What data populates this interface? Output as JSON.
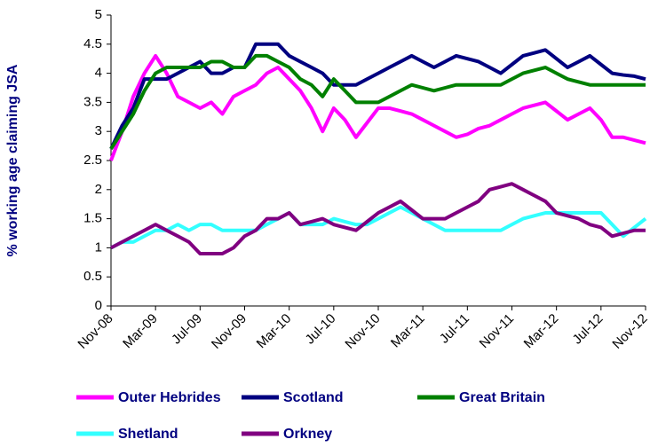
{
  "chart_data": {
    "type": "line",
    "y_label": "% working age claiming JSA",
    "categories": [
      "Nov-08",
      null,
      null,
      null,
      "Mar-09",
      null,
      null,
      null,
      "Jul-09",
      null,
      null,
      null,
      "Nov-09",
      null,
      null,
      null,
      "Mar-10",
      null,
      null,
      null,
      "Jul-10",
      null,
      null,
      null,
      "Nov-10",
      null,
      null,
      null,
      "Mar-11",
      null,
      null,
      null,
      "Jul-11",
      null,
      null,
      null,
      "Nov-11",
      null,
      null,
      null,
      "Mar-12",
      null,
      null,
      null,
      "Jul-12",
      null,
      null,
      null,
      "Nov-12"
    ],
    "series": [
      {
        "name": "Outer Hebrides",
        "color": "#ff00ff",
        "values": [
          2.5,
          3.0,
          3.6,
          4.0,
          4.3,
          4.0,
          3.6,
          3.5,
          3.4,
          3.5,
          3.3,
          3.6,
          3.7,
          3.8,
          4.0,
          4.1,
          3.9,
          3.7,
          3.4,
          3.0,
          3.4,
          3.2,
          2.9,
          3.15,
          3.4,
          3.4,
          3.35,
          3.3,
          3.2,
          3.1,
          3.0,
          2.9,
          2.95,
          3.05,
          3.1,
          3.2,
          3.3,
          3.4,
          3.45,
          3.5,
          3.35,
          3.2,
          3.3,
          3.4,
          3.2,
          2.9,
          2.9,
          2.85,
          2.8
        ]
      },
      {
        "name": "Scotland",
        "color": "#000080",
        "values": [
          2.7,
          3.1,
          3.4,
          3.9,
          3.9,
          3.9,
          4.0,
          4.1,
          4.2,
          4.0,
          4.0,
          4.1,
          4.1,
          4.5,
          4.5,
          4.5,
          4.3,
          4.2,
          4.1,
          4.0,
          3.8,
          3.8,
          3.8,
          3.9,
          4.0,
          4.1,
          4.2,
          4.3,
          4.2,
          4.1,
          4.2,
          4.3,
          4.25,
          4.2,
          4.1,
          4.0,
          4.15,
          4.3,
          4.35,
          4.4,
          4.25,
          4.1,
          4.2,
          4.3,
          4.15,
          4.0,
          3.97,
          3.95,
          3.9
        ]
      },
      {
        "name": "Great Britain",
        "color": "#008000",
        "values": [
          2.7,
          3.0,
          3.3,
          3.7,
          4.0,
          4.1,
          4.1,
          4.1,
          4.1,
          4.2,
          4.2,
          4.1,
          4.1,
          4.3,
          4.3,
          4.2,
          4.1,
          3.9,
          3.8,
          3.6,
          3.9,
          3.7,
          3.5,
          3.5,
          3.5,
          3.6,
          3.7,
          3.8,
          3.75,
          3.7,
          3.75,
          3.8,
          3.8,
          3.8,
          3.8,
          3.8,
          3.9,
          4.0,
          4.05,
          4.1,
          4.0,
          3.9,
          3.85,
          3.8,
          3.8,
          3.8,
          3.8,
          3.8,
          3.8
        ]
      },
      {
        "name": "Shetland",
        "color": "#33ffff",
        "values": [
          1.0,
          1.1,
          1.1,
          1.2,
          1.3,
          1.3,
          1.4,
          1.3,
          1.4,
          1.4,
          1.3,
          1.3,
          1.3,
          1.3,
          1.4,
          1.5,
          1.6,
          1.4,
          1.4,
          1.4,
          1.5,
          1.45,
          1.4,
          1.4,
          1.5,
          1.6,
          1.7,
          1.6,
          1.5,
          1.4,
          1.3,
          1.3,
          1.3,
          1.3,
          1.3,
          1.3,
          1.4,
          1.5,
          1.55,
          1.6,
          1.6,
          1.6,
          1.6,
          1.6,
          1.6,
          1.4,
          1.2,
          1.35,
          1.5
        ]
      },
      {
        "name": "Orkney",
        "color": "#800080",
        "values": [
          1.0,
          1.1,
          1.2,
          1.3,
          1.4,
          1.3,
          1.2,
          1.1,
          0.9,
          0.9,
          0.9,
          1.0,
          1.2,
          1.3,
          1.5,
          1.5,
          1.6,
          1.4,
          1.45,
          1.5,
          1.4,
          1.35,
          1.3,
          1.45,
          1.6,
          1.7,
          1.8,
          1.65,
          1.5,
          1.5,
          1.5,
          1.6,
          1.7,
          1.8,
          2.0,
          2.05,
          2.1,
          2.0,
          1.9,
          1.8,
          1.6,
          1.55,
          1.5,
          1.4,
          1.35,
          1.2,
          1.25,
          1.3,
          1.3
        ]
      }
    ],
    "ylim": [
      0,
      5
    ],
    "yticks": [
      0,
      0.5,
      1,
      1.5,
      2,
      2.5,
      3,
      3.5,
      4,
      4.5,
      5
    ],
    "grid": false,
    "legend": "bottom"
  }
}
